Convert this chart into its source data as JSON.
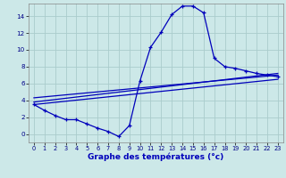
{
  "xlabel": "Graphe des températures (°c)",
  "background_color": "#cce8e8",
  "grid_color": "#aacccc",
  "line_color": "#0000bb",
  "xlim": [
    -0.5,
    23.5
  ],
  "ylim": [
    -1,
    15.5
  ],
  "xticks": [
    0,
    1,
    2,
    3,
    4,
    5,
    6,
    7,
    8,
    9,
    10,
    11,
    12,
    13,
    14,
    15,
    16,
    17,
    18,
    19,
    20,
    21,
    22,
    23
  ],
  "yticks": [
    0,
    2,
    4,
    6,
    8,
    10,
    12,
    14
  ],
  "curve1_x": [
    0,
    1,
    2,
    3,
    4,
    5,
    6,
    7,
    8,
    9,
    10,
    11,
    12,
    13,
    14,
    15,
    16,
    17,
    18,
    19,
    20,
    21,
    22,
    23
  ],
  "curve1_y": [
    3.5,
    2.8,
    2.2,
    1.7,
    1.7,
    1.2,
    0.7,
    0.3,
    -0.3,
    1.0,
    6.3,
    10.3,
    12.1,
    14.2,
    15.2,
    15.2,
    14.4,
    9.0,
    8.0,
    7.8,
    7.5,
    7.2,
    7.0,
    6.8
  ],
  "line1_x": [
    0,
    23
  ],
  "line1_y": [
    3.8,
    7.2
  ],
  "line2_x": [
    0,
    23
  ],
  "line2_y": [
    4.3,
    7.0
  ],
  "line3_x": [
    0,
    23
  ],
  "line3_y": [
    3.5,
    6.5
  ]
}
